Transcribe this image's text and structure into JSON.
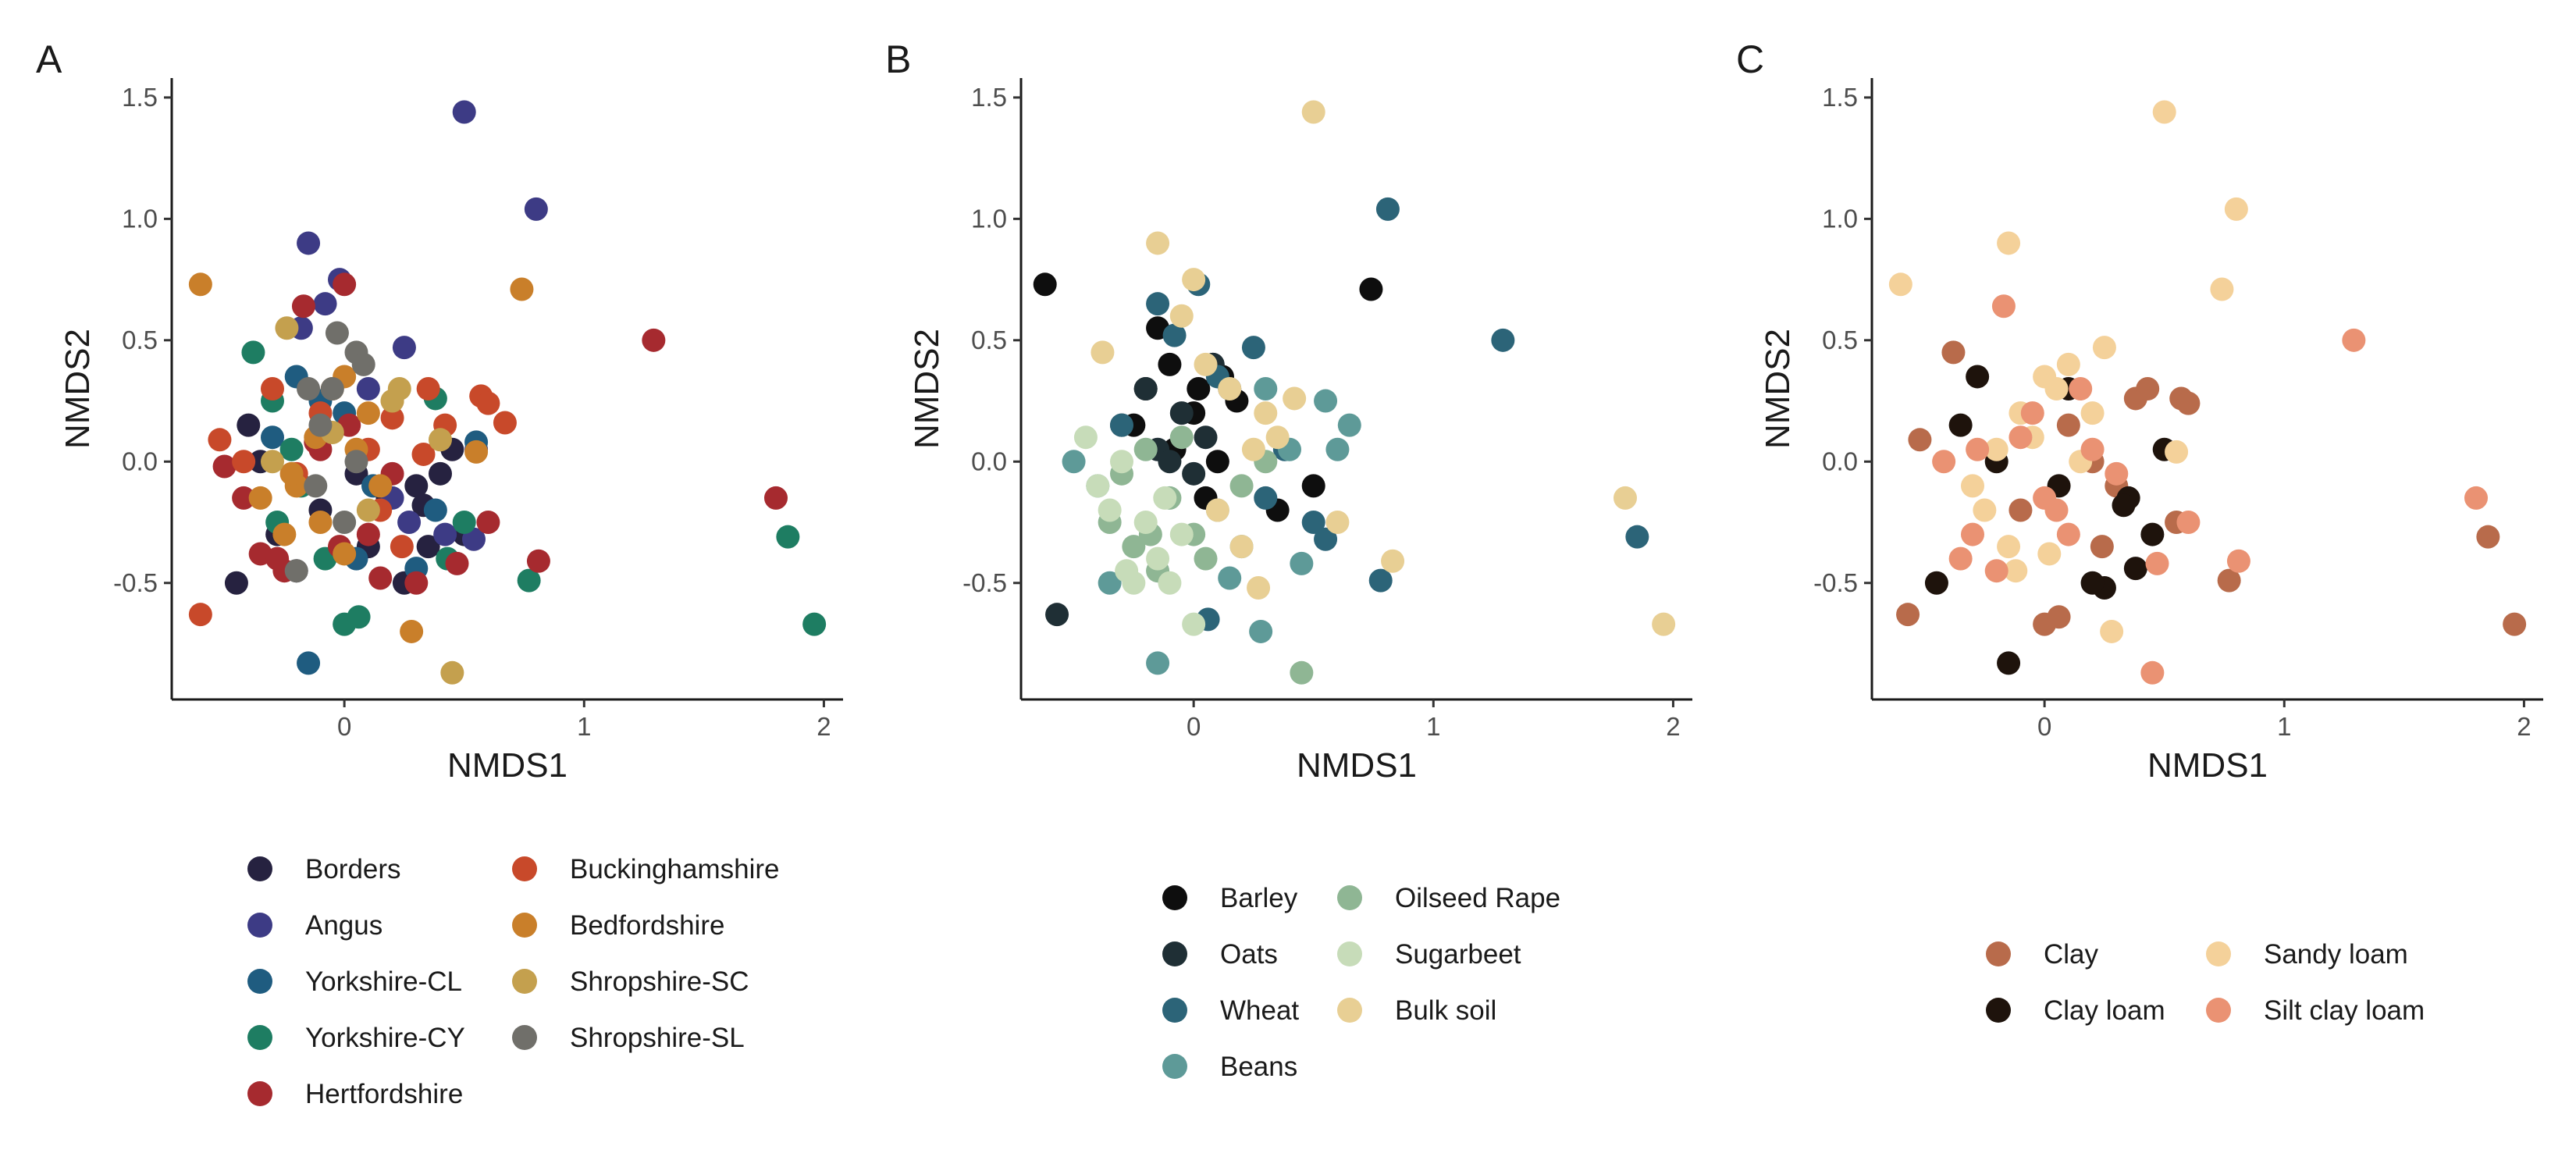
{
  "figure": {
    "panels": [
      {
        "letter": "A",
        "xlabel": "NMDS1",
        "ylabel": "NMDS2"
      },
      {
        "letter": "B",
        "xlabel": "NMDS1",
        "ylabel": "NMDS2"
      },
      {
        "letter": "C",
        "xlabel": "NMDS1",
        "ylabel": "NMDS2"
      }
    ]
  },
  "chart_data": [
    {
      "type": "scatter",
      "panel": "A",
      "xlabel": "NMDS1",
      "ylabel": "NMDS2",
      "xlim": [
        -0.72,
        2.08
      ],
      "ylim": [
        -0.98,
        1.58
      ],
      "xticks": [
        0,
        1,
        2
      ],
      "yticks": [
        -0.5,
        0.0,
        0.5,
        1.0,
        1.5
      ],
      "ytick_labels": [
        "-0.5",
        "0.0",
        "0.5",
        "1.0",
        "1.5"
      ],
      "grid": false,
      "legend_position": "bottom",
      "legend_columns": 2,
      "series": [
        {
          "name": "Borders",
          "color": "#262240",
          "x": [
            -0.4,
            -0.35,
            -0.28,
            -0.2,
            -0.1,
            0.05,
            0.1,
            0.18,
            0.3,
            0.35,
            0.25,
            0.33,
            0.45,
            0.4,
            0.5,
            -0.45
          ],
          "y": [
            0.15,
            0.0,
            -0.3,
            -0.45,
            -0.2,
            -0.05,
            -0.35,
            -0.15,
            -0.1,
            -0.35,
            -0.5,
            -0.18,
            0.05,
            -0.05,
            -0.3,
            -0.5
          ]
        },
        {
          "name": "Angus",
          "color": "#3d3b85",
          "x": [
            0.5,
            0.8,
            -0.15,
            -0.08,
            -0.02,
            0.25,
            0.42,
            0.54,
            0.55,
            0.1,
            0.2,
            -0.18,
            0.27
          ],
          "y": [
            1.44,
            1.04,
            0.9,
            0.65,
            0.75,
            0.47,
            -0.3,
            -0.32,
            0.05,
            0.3,
            -0.15,
            0.55,
            -0.25
          ]
        },
        {
          "name": "Yorkshire-CL",
          "color": "#1f5c80",
          "x": [
            -0.15,
            -0.3,
            -0.1,
            0.0,
            0.12,
            0.3,
            0.55,
            -0.2,
            0.05,
            0.38
          ],
          "y": [
            -0.83,
            0.1,
            0.25,
            0.2,
            -0.1,
            -0.44,
            0.08,
            0.35,
            -0.4,
            -0.2
          ]
        },
        {
          "name": "Yorkshire-CY",
          "color": "#1e7d62",
          "x": [
            -0.38,
            -0.3,
            -0.22,
            1.85,
            1.96,
            0.77,
            0.5,
            0.38,
            0.0,
            0.06,
            0.43,
            -0.28,
            -0.18,
            -0.08
          ],
          "y": [
            0.45,
            0.25,
            0.05,
            -0.31,
            -0.67,
            -0.49,
            -0.25,
            0.26,
            -0.67,
            -0.64,
            -0.4,
            -0.25,
            -0.1,
            -0.4
          ]
        },
        {
          "name": "Hertfordshire",
          "color": "#a62a2f",
          "x": [
            -0.5,
            -0.42,
            -0.35,
            -0.25,
            -0.17,
            -0.1,
            0.0,
            0.1,
            0.15,
            0.2,
            0.3,
            1.29,
            1.8,
            0.81,
            0.47,
            0.6,
            -0.02,
            -0.28,
            -0.12,
            0.02
          ],
          "y": [
            -0.02,
            -0.15,
            -0.38,
            -0.45,
            0.64,
            0.05,
            0.73,
            -0.3,
            -0.48,
            -0.05,
            -0.5,
            0.5,
            -0.15,
            -0.41,
            -0.42,
            -0.25,
            -0.35,
            -0.4,
            0.08,
            0.15
          ]
        },
        {
          "name": "Buckinghamshire",
          "color": "#c8492a",
          "x": [
            -0.6,
            -0.52,
            -0.3,
            -0.2,
            -0.1,
            0.1,
            0.2,
            0.35,
            0.42,
            0.57,
            0.6,
            0.67,
            0.33,
            0.24,
            -0.42,
            0.15
          ],
          "y": [
            -0.63,
            0.09,
            0.3,
            -0.05,
            0.2,
            0.05,
            0.18,
            0.3,
            0.15,
            0.27,
            0.24,
            0.16,
            0.03,
            -0.35,
            0.0,
            -0.2
          ]
        },
        {
          "name": "Bedfordshire",
          "color": "#c97f2a",
          "x": [
            -0.6,
            0.74,
            0.28,
            0.0,
            0.1,
            -0.2,
            -0.35,
            -0.1,
            0.05,
            0.2,
            0.55,
            -0.22,
            -0.12,
            -0.05,
            0.15,
            0.0,
            -0.25
          ],
          "y": [
            0.73,
            0.71,
            -0.7,
            0.35,
            0.2,
            -0.1,
            -0.15,
            -0.25,
            0.05,
            0.25,
            0.04,
            -0.05,
            0.1,
            0.3,
            -0.1,
            -0.38,
            -0.3
          ]
        },
        {
          "name": "Shropshire-SC",
          "color": "#c4a04e",
          "x": [
            0.45,
            -0.24,
            0.4,
            0.23,
            -0.05,
            0.1,
            -0.3,
            0.2
          ],
          "y": [
            -0.87,
            0.55,
            0.09,
            0.3,
            0.12,
            -0.2,
            0.0,
            0.25
          ]
        },
        {
          "name": "Shropshire-SL",
          "color": "#706f6a",
          "x": [
            -0.03,
            -0.15,
            0.05,
            -0.1,
            0.0,
            -0.2,
            0.05,
            -0.05,
            0.08,
            -0.12
          ],
          "y": [
            0.53,
            0.3,
            0.45,
            0.15,
            -0.25,
            -0.45,
            0.0,
            0.3,
            0.4,
            -0.1
          ]
        }
      ]
    },
    {
      "type": "scatter",
      "panel": "B",
      "xlabel": "NMDS1",
      "ylabel": "NMDS2",
      "xlim": [
        -0.72,
        2.08
      ],
      "ylim": [
        -0.98,
        1.58
      ],
      "xticks": [
        0,
        1,
        2
      ],
      "yticks": [
        -0.5,
        0.0,
        0.5,
        1.0,
        1.5
      ],
      "ytick_labels": [
        "-0.5",
        "0.0",
        "0.5",
        "1.0",
        "1.5"
      ],
      "grid": false,
      "legend_position": "bottom",
      "legend_columns": 2,
      "series": [
        {
          "name": "Barley",
          "color": "#0e0e0e",
          "x": [
            -0.62,
            0.74,
            -0.1,
            0.0,
            0.1,
            -0.2,
            0.05,
            -0.08,
            0.12,
            0.18,
            0.35,
            0.5,
            -0.25,
            0.08,
            -0.15,
            0.02
          ],
          "y": [
            0.73,
            0.71,
            0.4,
            0.2,
            0.0,
            0.3,
            -0.15,
            0.05,
            0.35,
            0.25,
            -0.2,
            -0.1,
            0.15,
            0.4,
            0.55,
            0.3
          ]
        },
        {
          "name": "Oats",
          "color": "#1f2f35",
          "x": [
            -0.57,
            -0.3,
            -0.15,
            -0.05,
            0.0,
            0.08,
            0.15,
            -0.2,
            -0.1,
            0.05
          ],
          "y": [
            -0.63,
            0.15,
            0.05,
            0.2,
            -0.05,
            0.4,
            0.3,
            0.3,
            0.0,
            0.1
          ]
        },
        {
          "name": "Wheat",
          "color": "#2c6478",
          "x": [
            0.81,
            1.29,
            1.85,
            0.78,
            0.02,
            0.25,
            0.5,
            0.55,
            0.38,
            -0.15,
            -0.08,
            0.1,
            0.3,
            -0.3,
            0.06
          ],
          "y": [
            1.04,
            0.5,
            -0.31,
            -0.49,
            0.73,
            0.47,
            -0.25,
            -0.32,
            0.05,
            0.65,
            0.52,
            0.35,
            -0.15,
            0.15,
            -0.65
          ]
        },
        {
          "name": "Beans",
          "color": "#5e9a98",
          "x": [
            -0.15,
            0.28,
            0.45,
            0.65,
            0.55,
            0.3,
            0.2,
            0.4,
            0.15,
            0.6,
            -0.4,
            -0.5,
            -0.35
          ],
          "y": [
            -0.83,
            -0.7,
            -0.42,
            0.15,
            0.25,
            0.3,
            -0.35,
            0.05,
            -0.48,
            0.05,
            -0.1,
            0.0,
            -0.5
          ]
        },
        {
          "name": "Oilseed Rape",
          "color": "#8fb694",
          "x": [
            0.45,
            -0.3,
            -0.2,
            -0.1,
            0.0,
            -0.25,
            -0.15,
            -0.05,
            0.1,
            0.2,
            0.3,
            -0.35,
            0.05,
            -0.18
          ],
          "y": [
            -0.87,
            -0.05,
            0.05,
            -0.15,
            -0.3,
            -0.35,
            -0.45,
            0.1,
            -0.2,
            -0.1,
            0.0,
            -0.25,
            -0.4,
            -0.3
          ]
        },
        {
          "name": "Sugarbeet",
          "color": "#c7dcb9",
          "x": [
            -0.45,
            -0.35,
            -0.25,
            -0.15,
            -0.05,
            0.0,
            -0.3,
            -0.2,
            -0.1,
            -0.4,
            -0.28,
            -0.12
          ],
          "y": [
            0.1,
            -0.2,
            -0.5,
            -0.4,
            -0.3,
            -0.67,
            0.0,
            -0.25,
            -0.5,
            -0.1,
            -0.45,
            -0.15
          ]
        },
        {
          "name": "Bulk soil",
          "color": "#e8cf94",
          "x": [
            0.5,
            1.8,
            1.96,
            0.83,
            0.42,
            0.27,
            -0.15,
            -0.38,
            0.0,
            0.05,
            0.15,
            0.3,
            0.35,
            0.6,
            0.25,
            0.1,
            0.2,
            -0.05
          ],
          "y": [
            1.44,
            -0.15,
            -0.67,
            -0.41,
            0.26,
            -0.52,
            0.9,
            0.45,
            0.75,
            0.4,
            0.3,
            0.2,
            0.1,
            -0.25,
            0.05,
            -0.2,
            -0.35,
            0.6
          ]
        }
      ]
    },
    {
      "type": "scatter",
      "panel": "C",
      "xlabel": "NMDS1",
      "ylabel": "NMDS2",
      "xlim": [
        -0.72,
        2.08
      ],
      "ylim": [
        -0.98,
        1.58
      ],
      "xticks": [
        0,
        1,
        2
      ],
      "yticks": [
        -0.5,
        0.0,
        0.5,
        1.0,
        1.5
      ],
      "ytick_labels": [
        "-0.5",
        "0.0",
        "0.5",
        "1.0",
        "1.5"
      ],
      "grid": false,
      "legend_position": "bottom",
      "legend_columns": 2,
      "series": [
        {
          "name": "Clay",
          "color": "#b86b4b",
          "x": [
            -0.57,
            -0.52,
            -0.38,
            1.85,
            1.96,
            0.77,
            0.55,
            0.57,
            0.38,
            0.43,
            0.0,
            0.06,
            -0.1,
            0.24,
            0.1,
            0.2,
            0.3,
            0.6
          ],
          "y": [
            -0.63,
            0.09,
            0.45,
            -0.31,
            -0.67,
            -0.49,
            -0.25,
            0.26,
            0.26,
            0.3,
            -0.67,
            -0.64,
            -0.2,
            -0.35,
            0.15,
            0.0,
            -0.1,
            0.24
          ]
        },
        {
          "name": "Clay loam",
          "color": "#1e130c",
          "x": [
            -0.15,
            -0.45,
            -0.35,
            0.35,
            0.45,
            0.38,
            0.25,
            0.33,
            0.5,
            -0.28,
            0.06,
            0.1,
            -0.2,
            0.2
          ],
          "y": [
            -0.83,
            -0.5,
            0.15,
            -0.15,
            -0.3,
            -0.44,
            -0.52,
            -0.18,
            0.05,
            0.35,
            -0.1,
            0.3,
            0.0,
            -0.5
          ]
        },
        {
          "name": "Sandy loam",
          "color": "#f4d19a",
          "x": [
            0.5,
            0.8,
            0.74,
            -0.6,
            -0.15,
            0.28,
            -0.3,
            -0.2,
            -0.1,
            0.0,
            0.1,
            0.2,
            -0.25,
            -0.15,
            -0.05,
            0.05,
            0.15,
            -0.12,
            0.02,
            0.55,
            0.25
          ],
          "y": [
            1.44,
            1.04,
            0.71,
            0.73,
            0.9,
            -0.7,
            -0.1,
            0.05,
            0.2,
            0.35,
            0.4,
            0.2,
            -0.2,
            -0.35,
            0.1,
            0.3,
            0.0,
            -0.45,
            -0.38,
            0.04,
            0.47
          ]
        },
        {
          "name": "Silt clay loam",
          "color": "#ea9273",
          "x": [
            1.29,
            1.8,
            0.81,
            0.45,
            -0.42,
            -0.3,
            -0.2,
            -0.1,
            0.0,
            0.1,
            0.2,
            0.3,
            -0.17,
            0.15,
            0.47,
            0.6,
            -0.05,
            -0.28,
            -0.35,
            0.05
          ],
          "y": [
            0.5,
            -0.15,
            -0.41,
            -0.87,
            0.0,
            -0.3,
            -0.45,
            0.1,
            -0.15,
            -0.3,
            0.05,
            -0.05,
            0.64,
            0.3,
            -0.42,
            -0.25,
            0.2,
            0.05,
            -0.4,
            -0.2
          ]
        }
      ]
    }
  ]
}
